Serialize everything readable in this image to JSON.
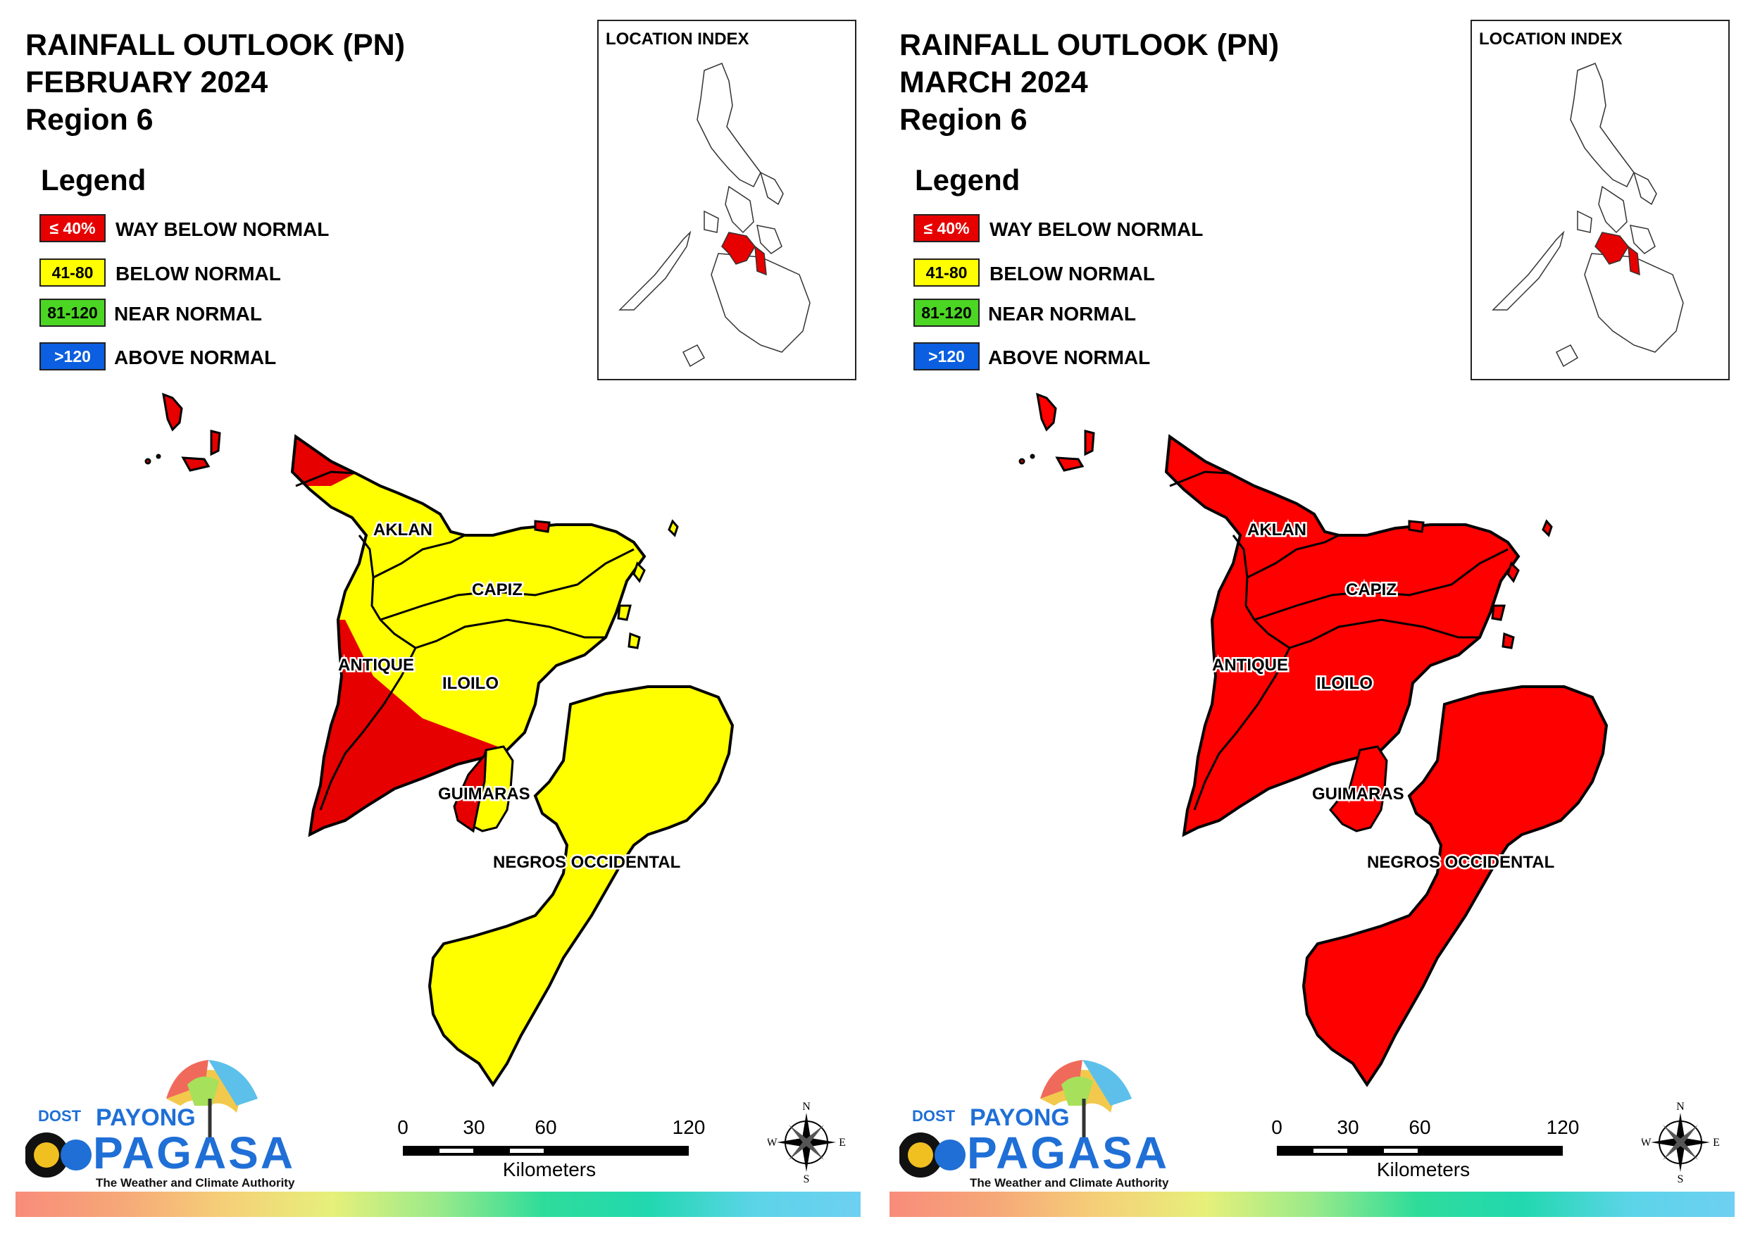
{
  "panels": [
    {
      "title_line1": "RAINFALL OUTLOOK (PN)",
      "title_line2": "FEBRUARY 2024",
      "title_line3": "Region 6",
      "legend_title": "Legend",
      "legend": [
        {
          "code": "≤ 40%",
          "label": "WAY BELOW NORMAL",
          "color": "#e60000"
        },
        {
          "code": "41-80",
          "label": "BELOW NORMAL",
          "color": "#ffff00"
        },
        {
          "code": "81-120",
          "label": "NEAR NORMAL",
          "color": "#4cd624"
        },
        {
          "code": ">120",
          "label": "ABOVE NORMAL",
          "color": "#0b5fe0"
        }
      ],
      "location_index_title": "LOCATION INDEX",
      "provinces": {
        "aklan": "AKLAN",
        "capiz": "CAPIZ",
        "antique": "ANTIQUE",
        "iloilo": "ILOILO",
        "guimaras": "GUIMARAS",
        "negros": "NEGROS OCCIDENTAL"
      },
      "province_colors": {
        "aklan": "#ffff00",
        "capiz": "#ffff00",
        "antique": "mixed",
        "iloilo": "mixed",
        "guimaras": "mixed",
        "negros": "#ffff00"
      },
      "scale": {
        "ticks": [
          "0",
          "30",
          "60",
          "120"
        ],
        "unit": "Kilometers"
      },
      "compass": {
        "n": "N",
        "s": "S",
        "e": "E",
        "w": "W"
      },
      "logo": {
        "dost": "DOST",
        "payong": "PAYONG",
        "pagasa": "PAGASA",
        "tagline": "The Weather and Climate Authority"
      }
    },
    {
      "title_line1": "RAINFALL OUTLOOK (PN)",
      "title_line2": "MARCH 2024",
      "title_line3": "Region 6",
      "legend_title": "Legend",
      "legend": [
        {
          "code": "≤ 40%",
          "label": "WAY BELOW NORMAL",
          "color": "#e60000"
        },
        {
          "code": "41-80",
          "label": "BELOW NORMAL",
          "color": "#ffff00"
        },
        {
          "code": "81-120",
          "label": "NEAR NORMAL",
          "color": "#4cd624"
        },
        {
          "code": ">120",
          "label": "ABOVE NORMAL",
          "color": "#0b5fe0"
        }
      ],
      "location_index_title": "LOCATION INDEX",
      "provinces": {
        "aklan": "AKLAN",
        "capiz": "CAPIZ",
        "antique": "ANTIQUE",
        "iloilo": "ILOILO",
        "guimaras": "GUIMARAS",
        "negros": "NEGROS OCCIDENTAL"
      },
      "province_colors": {
        "aklan": "#ff0000",
        "capiz": "#ff0000",
        "antique": "#ff0000",
        "iloilo": "#ff0000",
        "guimaras": "#ff0000",
        "negros": "#ff0000"
      },
      "scale": {
        "ticks": [
          "0",
          "30",
          "60",
          "120"
        ],
        "unit": "Kilometers"
      },
      "compass": {
        "n": "N",
        "s": "S",
        "e": "E",
        "w": "W"
      },
      "logo": {
        "dost": "DOST",
        "payong": "PAYONG",
        "pagasa": "PAGASA",
        "tagline": "The Weather and Climate Authority"
      }
    }
  ]
}
